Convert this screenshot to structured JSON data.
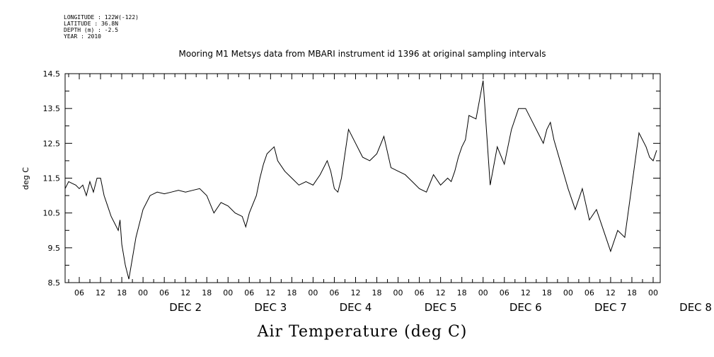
{
  "header": {
    "longitude": "LONGITUDE : 122W(-122)",
    "latitude": "LATITUDE : 36.8N",
    "depth": "DEPTH (m) : -2.5",
    "year": "YEAR : 2010"
  },
  "chart_data": {
    "type": "line",
    "title": "Mooring M1 Metsys data from MBARI instrument id 1396 at original sampling intervals",
    "xlabel": "Air Temperature (deg C)",
    "ylabel": "deg C",
    "ylim": [
      8.5,
      14.5
    ],
    "yticks": [
      "8.5",
      "9.5",
      "10.5",
      "11.5",
      "12.5",
      "13.5",
      "14.5"
    ],
    "x_unit": "hours since DEC 1 2010 00:00",
    "xlim": [
      2,
      170
    ],
    "hour_ticks": [
      "06",
      "12",
      "18",
      "00",
      "06",
      "12",
      "18",
      "00",
      "06",
      "12",
      "18",
      "00",
      "06",
      "12",
      "18",
      "00",
      "06",
      "12",
      "18",
      "00",
      "06",
      "12",
      "18",
      "00",
      "06",
      "12",
      "18",
      "00"
    ],
    "day_labels": [
      "DEC  2",
      "DEC  3",
      "DEC  4",
      "DEC  5",
      "DEC  6",
      "DEC  7",
      "DEC  8"
    ],
    "grid": false,
    "series": [
      {
        "color": "#000000",
        "x": [
          2.0,
          3.0,
          4.0,
          5.0,
          6.0,
          7.0,
          8.0,
          9.0,
          10.0,
          11.0,
          12.0,
          13.0,
          14.0,
          15.0,
          16.0,
          17.0,
          17.5,
          18.0,
          19.0,
          20.0,
          21.0,
          22.0,
          23.0,
          24.0,
          26.0,
          28.0,
          30.0,
          32.0,
          34.0,
          36.0,
          38.0,
          40.0,
          42.0,
          44.0,
          46.0,
          48.0,
          50.0,
          52.0,
          53.0,
          54.0,
          56.0,
          57.0,
          58.0,
          59.0,
          60.0,
          61.0,
          62.0,
          64.0,
          66.0,
          68.0,
          70.0,
          72.0,
          74.0,
          76.0,
          77.0,
          78.0,
          79.0,
          80.0,
          82.0,
          84.0,
          86.0,
          88.0,
          90.0,
          92.0,
          94.0,
          96.0,
          98.0,
          100.0,
          102.0,
          104.0,
          106.0,
          108.0,
          110.0,
          111.0,
          112.0,
          113.0,
          114.0,
          115.0,
          116.0,
          118.0,
          120.0,
          122.0,
          124.0,
          126.0,
          128.0,
          130.0,
          132.0,
          134.0,
          136.0,
          137.0,
          138.0,
          139.0,
          140.0,
          142.0,
          144.0,
          146.0,
          148.0,
          150.0,
          152.0,
          154.0,
          156.0,
          158.0,
          160.0,
          162.0,
          164.0,
          166.0,
          167.0,
          168.0,
          169.0
        ],
        "values": [
          11.2,
          11.4,
          11.35,
          11.3,
          11.2,
          11.3,
          11.0,
          11.4,
          11.1,
          11.5,
          11.5,
          11.0,
          10.7,
          10.4,
          10.2,
          10.0,
          10.3,
          9.6,
          9.0,
          8.6,
          9.2,
          9.8,
          10.2,
          10.6,
          11.0,
          11.1,
          11.05,
          11.1,
          11.15,
          11.1,
          11.15,
          11.2,
          11.0,
          10.5,
          10.8,
          10.7,
          10.5,
          10.4,
          10.1,
          10.5,
          11.0,
          11.5,
          11.9,
          12.2,
          12.3,
          12.4,
          12.0,
          11.7,
          11.5,
          11.3,
          11.4,
          11.3,
          11.6,
          12.0,
          11.7,
          11.2,
          11.1,
          11.5,
          12.9,
          12.5,
          12.1,
          12.0,
          12.2,
          12.7,
          11.8,
          11.7,
          11.6,
          11.4,
          11.2,
          11.1,
          11.6,
          11.3,
          11.5,
          11.4,
          11.7,
          12.1,
          12.4,
          12.6,
          13.3,
          13.2,
          14.3,
          11.3,
          12.4,
          11.9,
          12.9,
          13.5,
          13.5,
          13.1,
          12.7,
          12.5,
          12.9,
          13.1,
          12.6,
          11.9,
          11.2,
          10.6,
          11.2,
          10.3,
          10.6,
          10.0,
          9.4,
          10.0,
          9.8,
          11.3,
          12.8,
          12.4,
          12.1,
          12.0,
          12.3
        ]
      }
    ]
  }
}
